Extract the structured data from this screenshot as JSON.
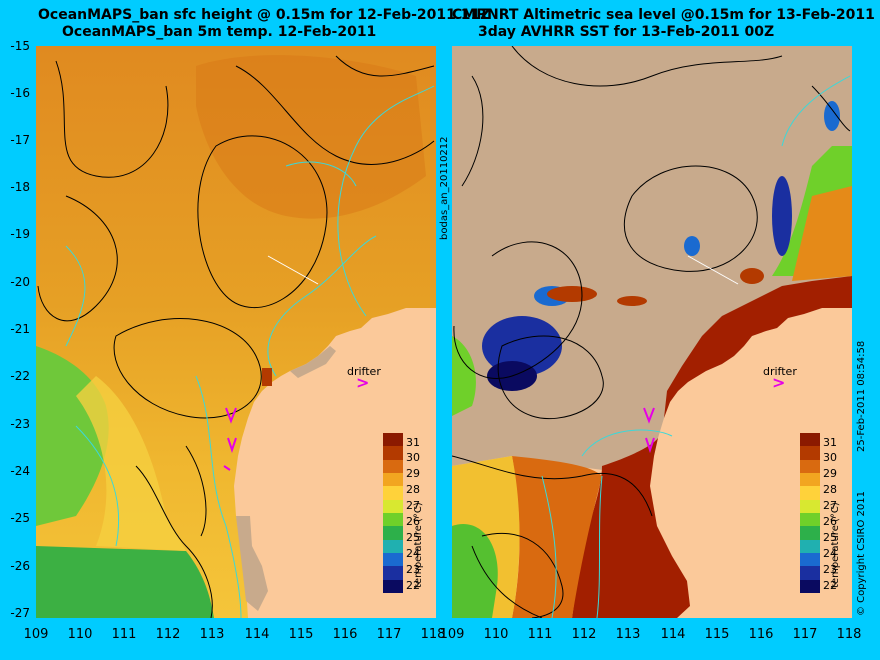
{
  "titles": {
    "left_line1": "OceanMAPS_ban sfc height @ 0.15m for 12-Feb-2011 11Z",
    "left_line2": "OceanMAPS_ban 5m temp. 12-Feb-2011",
    "right_line1": "CMRNRT Altimetric sea level  @0.15m  for 13-Feb-2011 12Z",
    "right_line2": "3day AVHRR SST for 13-Feb-2011 00Z"
  },
  "axes": {
    "y_ticks": [
      "-15",
      "-16",
      "-17",
      "-18",
      "-19",
      "-20",
      "-21",
      "-22",
      "-23",
      "-24",
      "-25",
      "-26",
      "-27"
    ],
    "x_ticks": [
      "109",
      "110",
      "111",
      "112",
      "113",
      "114",
      "115",
      "116",
      "117",
      "118"
    ]
  },
  "side_labels": {
    "middle": "bodas_an_20110212",
    "right_timestamp": "25-Feb-2011 08:54:58",
    "right_copyright": "© Copyright CSIRO 2011"
  },
  "drifter": {
    "label": "drifter",
    "arrow": ">"
  },
  "colorbar": {
    "title": "temperature (°C)",
    "labels": [
      "31",
      "30",
      "29",
      "28",
      "27",
      "26",
      "25",
      "24",
      "23",
      "22"
    ],
    "colors": [
      "#8b1a00",
      "#b33a00",
      "#d96a10",
      "#f2a520",
      "#ffd23a",
      "#d8e830",
      "#6fd02a",
      "#2db04a",
      "#20b0b0",
      "#1a6ad0",
      "#1a2fa0",
      "#0a0a60"
    ]
  },
  "colors": {
    "background": "#00ccff",
    "land": "#fbc99a",
    "cloud": "#c8aa8c",
    "contour_black": "#000000",
    "contour_cyan": "#3cd8d8",
    "drifter": "#e600e6"
  }
}
